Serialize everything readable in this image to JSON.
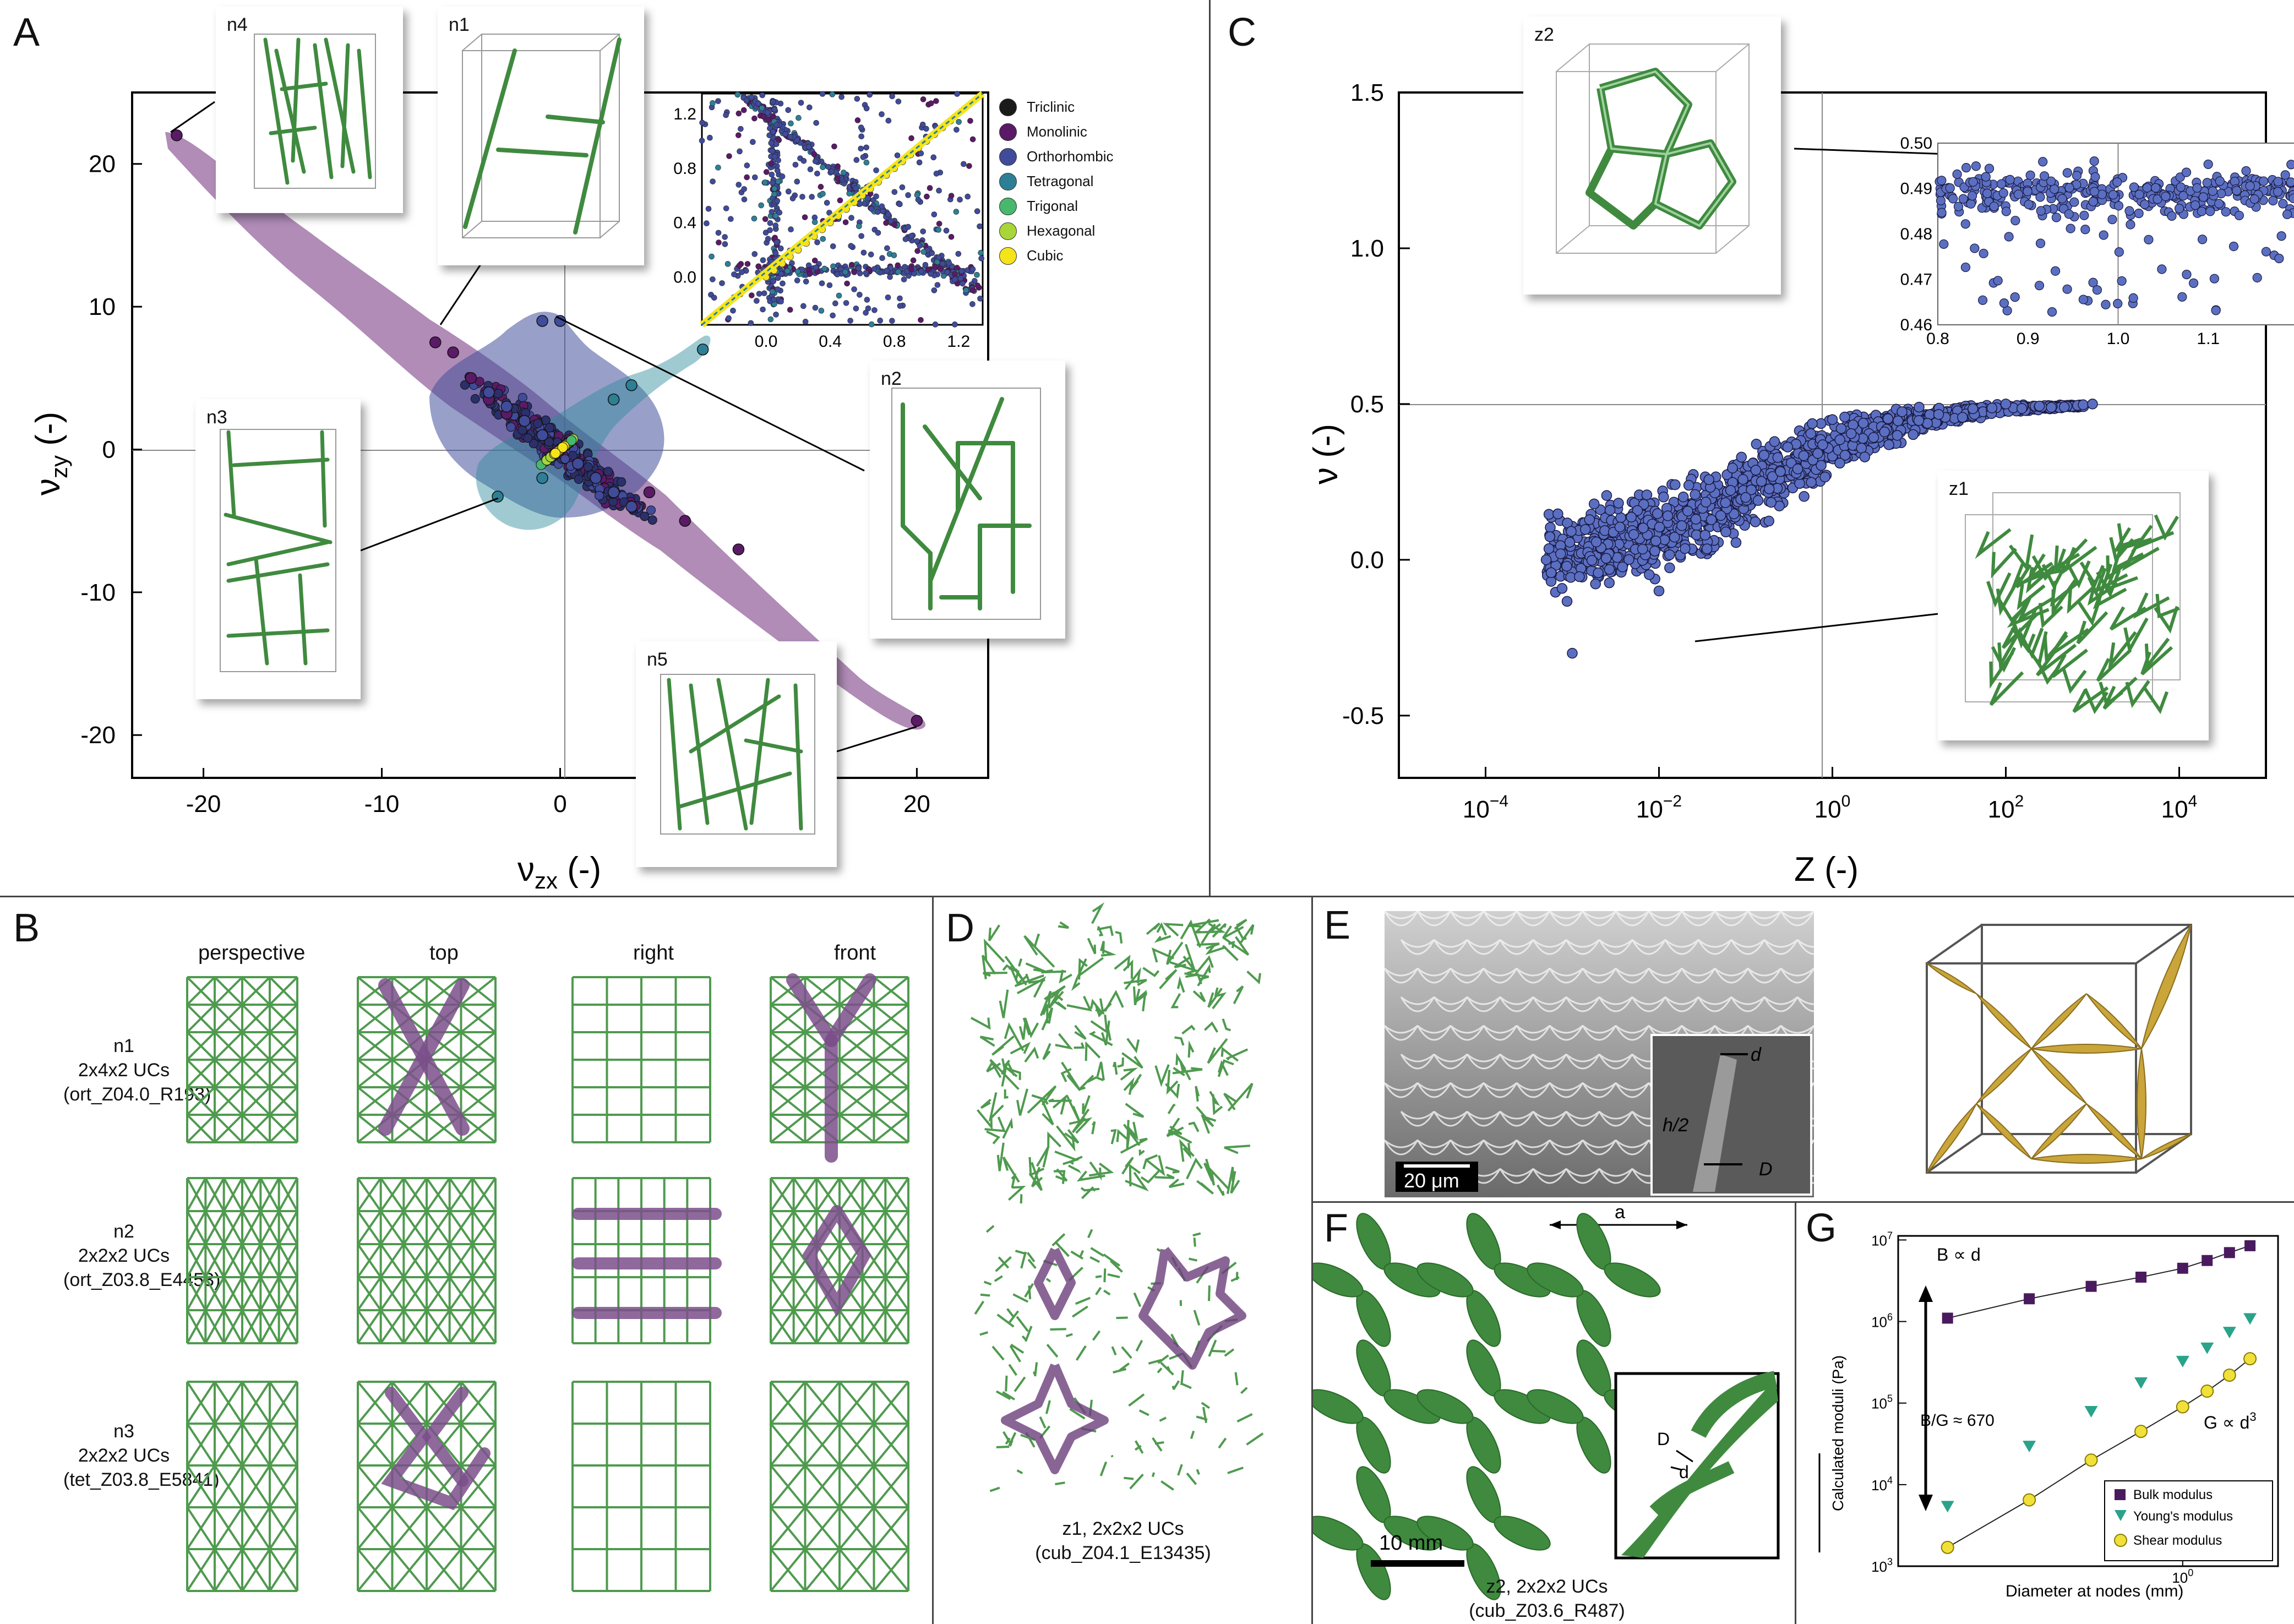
{
  "panels": {
    "A": {
      "letter": "A",
      "xlabel": "ν",
      "xlabel_sub": "zx",
      "xlabel_unit": " (-)",
      "ylabel": "ν",
      "ylabel_sub": "zy",
      "ylabel_unit": " (-)",
      "insets": [
        "n4",
        "n1",
        "n2",
        "n3",
        "n5"
      ],
      "legend": [
        {
          "name": "Triclinic",
          "color": "#1a1a1a"
        },
        {
          "name": "Monolinic",
          "color": "#5b1a66"
        },
        {
          "name": "Orthorhombic",
          "color": "#404b9a"
        },
        {
          "name": "Tetragonal",
          "color": "#2d7f96"
        },
        {
          "name": "Trigonal",
          "color": "#47b86c"
        },
        {
          "name": "Hexagonal",
          "color": "#a8d63a"
        },
        {
          "name": "Cubic",
          "color": "#f5e41a"
        }
      ]
    },
    "B": {
      "letter": "B",
      "views": [
        "perspective",
        "top",
        "right",
        "front"
      ],
      "rows": [
        {
          "line1": "n1",
          "line2": "2x4x2 UCs",
          "line3": "(ort_Z04.0_R193)"
        },
        {
          "line1": "n2",
          "line2": "2x2x2 UCs",
          "line3": "(ort_Z03.8_E4453)"
        },
        {
          "line1": "n3",
          "line2": "2x2x2 UCs",
          "line3": "(tet_Z03.8_E5841)"
        }
      ]
    },
    "C": {
      "letter": "C",
      "xlabel": "Z (-)",
      "ylabel": "ν (-)",
      "insets": [
        "z2",
        "z1"
      ]
    },
    "D": {
      "letter": "D",
      "caption1": "z1, 2x2x2 UCs",
      "caption2": "(cub_Z04.1_E13435)"
    },
    "E": {
      "letter": "E",
      "scalebar": "20 μm",
      "lbl_d": "d",
      "lbl_h": "h/2",
      "lbl_D": "D"
    },
    "F": {
      "letter": "F",
      "scalebar": "10 mm",
      "lbl_a": "a",
      "lbl_D": "D",
      "lbl_d": "d",
      "caption1": "z2, 2x2x2 UCs",
      "caption2": "(cub_Z03.6_R487)"
    },
    "G": {
      "letter": "G",
      "ylabel": "Calculated moduli (Pa)",
      "xlabel": "Diameter at nodes (mm)",
      "ann_bulk": "B ∝ d",
      "ann_ratio": "B/G ≈ 670",
      "ann_shear": "G ∝ d",
      "legend": [
        "Bulk modulus",
        "Young's modulus",
        "Shear modulus"
      ]
    }
  },
  "chart_data": [
    {
      "type": "scatter",
      "panel": "A",
      "xlabel": "νzx (-)",
      "ylabel": "νzy (-)",
      "xlim": [
        -24,
        24
      ],
      "ylim": [
        -23,
        25
      ],
      "xticks": [
        -20,
        -10,
        0,
        10,
        20
      ],
      "yticks": [
        -20,
        -10,
        0,
        10,
        20
      ],
      "series": [
        {
          "name": "Monolinic",
          "points": [
            [
              -21.5,
              22
            ],
            [
              -7,
              7.5
            ],
            [
              -6,
              6.8
            ],
            [
              -5,
              5
            ],
            [
              -4,
              3.5
            ],
            [
              -3,
              2.5
            ],
            [
              -2,
              2
            ],
            [
              5,
              -3
            ],
            [
              7,
              -5
            ],
            [
              10,
              -7
            ],
            [
              20,
              -19
            ]
          ]
        },
        {
          "name": "Orthorhombic",
          "points": [
            [
              -4,
              4
            ],
            [
              -3,
              3
            ],
            [
              -2,
              2
            ],
            [
              -1,
              1
            ],
            [
              1,
              -1
            ],
            [
              2,
              -2
            ],
            [
              3,
              -3
            ],
            [
              -1,
              9
            ],
            [
              0,
              9
            ],
            [
              4,
              -4
            ]
          ]
        },
        {
          "name": "Tetragonal",
          "points": [
            [
              -3.5,
              -3.3
            ],
            [
              -1,
              -2
            ],
            [
              3,
              3.5
            ],
            [
              4,
              4.5
            ],
            [
              8,
              7
            ]
          ]
        },
        {
          "name": "Cubic",
          "points": [
            [
              0,
              0
            ],
            [
              0.3,
              0.3
            ],
            [
              0.5,
              0.5
            ],
            [
              -0.3,
              -0.3
            ]
          ]
        }
      ]
    },
    {
      "type": "scatter",
      "panel": "A-inset",
      "xlim": [
        -0.4,
        1.35
      ],
      "ylim": [
        -0.35,
        1.35
      ],
      "xticks": [
        0.0,
        0.4,
        0.8,
        1.2
      ],
      "yticks": [
        0.0,
        0.4,
        0.8,
        1.2
      ]
    },
    {
      "type": "scatter",
      "panel": "C",
      "xlabel": "Z (-)",
      "ylabel": "ν (-)",
      "xscale": "log",
      "xlim": [
        1e-05,
        100000
      ],
      "ylim": [
        -0.7,
        1.5
      ],
      "xticks": [
        "10^-4",
        "10^-2",
        "10^0",
        "10^2",
        "10^4"
      ],
      "yticks": [
        -0.5,
        0.0,
        0.5,
        1.0,
        1.5
      ],
      "series": [
        {
          "name": "lattices",
          "points": [
            [
              0.0005,
              0
            ],
            [
              0.001,
              -0.3
            ],
            [
              0.01,
              -0.1
            ],
            [
              0.1,
              0.2
            ],
            [
              1,
              0.45
            ],
            [
              10,
              0.49
            ],
            [
              100,
              0.5
            ],
            [
              1000,
              0.5
            ]
          ]
        }
      ]
    },
    {
      "type": "scatter",
      "panel": "C-inset",
      "xlim": [
        0.8,
        1.2
      ],
      "ylim": [
        0.46,
        0.5
      ],
      "xticks": [
        0.8,
        0.9,
        1.0,
        1.1
      ],
      "yticks": [
        0.46,
        0.47,
        0.48,
        0.49,
        0.5
      ]
    },
    {
      "type": "line",
      "panel": "G",
      "xlabel": "Diameter at nodes (mm)",
      "ylabel": "Calculated moduli (Pa)",
      "xscale": "log",
      "yscale": "log",
      "yticks": [
        "10^3",
        "10^4",
        "10^5",
        "10^6",
        "10^7"
      ],
      "xticks": [
        "10^0"
      ],
      "series": [
        {
          "name": "Bulk modulus",
          "x": [
            0.4,
            0.55,
            0.7,
            0.85,
            1.0,
            1.1,
            1.2,
            1.3
          ],
          "y": [
            1100000,
            1900000,
            2700000,
            3500000,
            4500000,
            5600000,
            7000000,
            8500000
          ]
        },
        {
          "name": "Young's modulus",
          "x": [
            0.4,
            0.55,
            0.7,
            0.85,
            1.0,
            1.1,
            1.2,
            1.3
          ],
          "y": [
            5500,
            30000,
            80000,
            180000,
            330000,
            480000,
            750000,
            1100000
          ]
        },
        {
          "name": "Shear modulus",
          "x": [
            0.4,
            0.55,
            0.7,
            0.85,
            1.0,
            1.1,
            1.2,
            1.3
          ],
          "y": [
            1700,
            6500,
            20000,
            45000,
            90000,
            140000,
            220000,
            350000
          ]
        }
      ]
    }
  ]
}
